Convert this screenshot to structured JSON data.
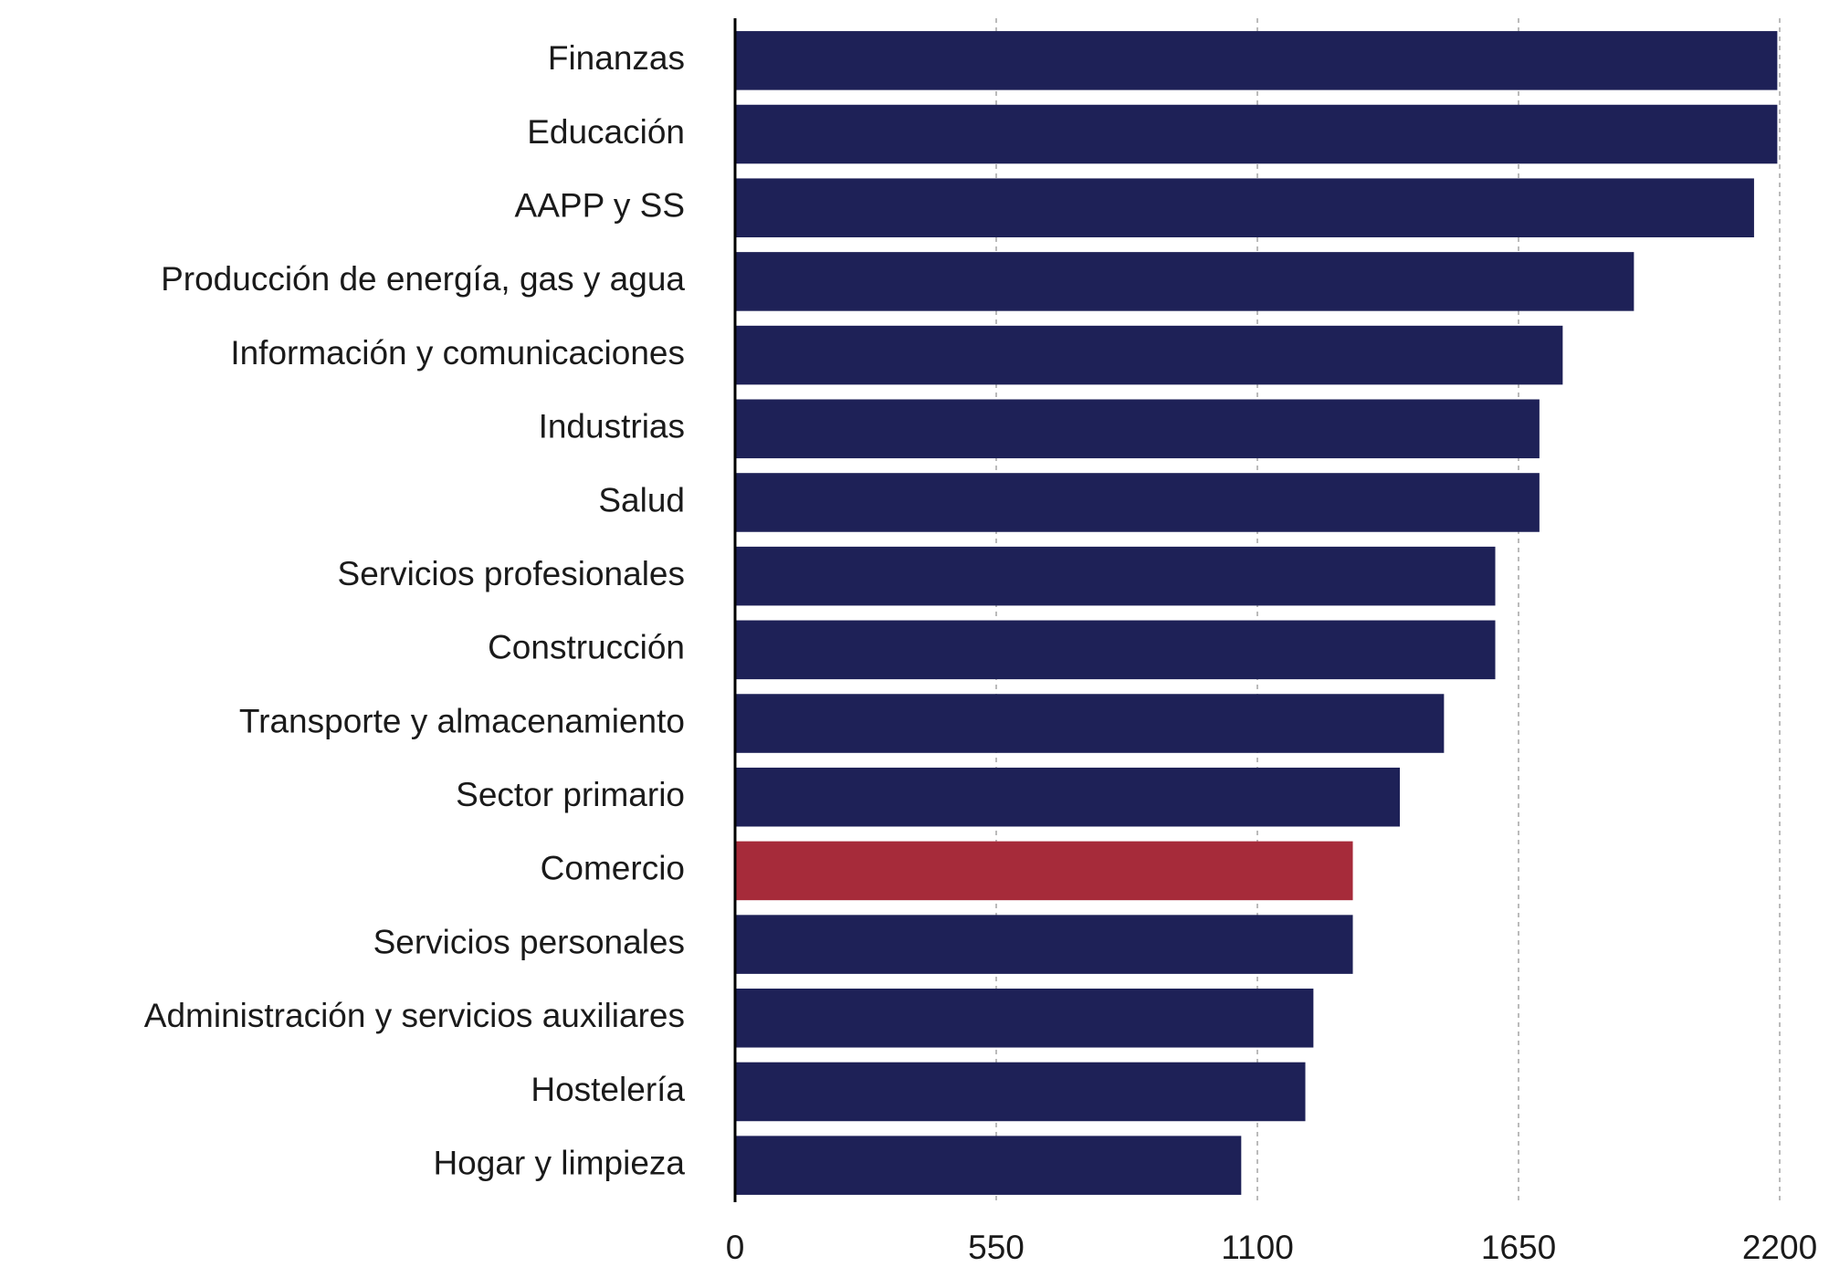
{
  "chart_data": {
    "type": "bar",
    "orientation": "horizontal",
    "categories": [
      "Finanzas",
      "Educación",
      "AAPP y SS",
      "Producción de energía, gas y agua",
      "Información y comunicaciones",
      "Industrias",
      "Salud",
      "Servicios profesionales",
      "Construcción",
      "Transporte y almacenamiento",
      "Sector primario",
      "Comercio",
      "Servicios personales",
      "Administración y servicios auxiliares",
      "Hostelería",
      "Hogar y limpieza"
    ],
    "values": [
      2195,
      2195,
      2146,
      1893,
      1743,
      1694,
      1694,
      1601,
      1601,
      1493,
      1400,
      1301,
      1301,
      1218,
      1201,
      1066
    ],
    "colors": [
      "#1e2157",
      "#1e2157",
      "#1e2157",
      "#1e2157",
      "#1e2157",
      "#1e2157",
      "#1e2157",
      "#1e2157",
      "#1e2157",
      "#1e2157",
      "#1e2157",
      "#a62b3a",
      "#1e2157",
      "#1e2157",
      "#1e2157",
      "#1e2157"
    ],
    "xlim": [
      0,
      2200
    ],
    "xticks": [
      0,
      550,
      1100,
      1650,
      2200
    ],
    "grid": true
  }
}
